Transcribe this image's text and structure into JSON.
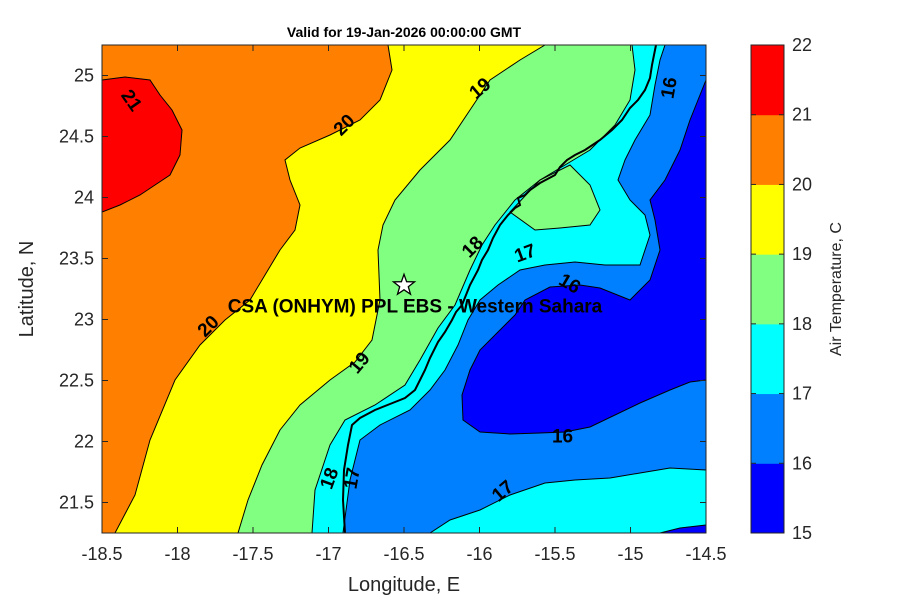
{
  "chart_data": {
    "type": "filled-contour",
    "title": "Valid for 19-Jan-2026 00:00:00 GMT",
    "xlabel": "Longitude, E",
    "ylabel": "Latitude, N",
    "xlim": [
      -18.5,
      -14.5
    ],
    "ylim": [
      21.25,
      25.25
    ],
    "xticks": [
      "-18.5",
      "-18",
      "-17.5",
      "-17",
      "-16.5",
      "-16",
      "-15.5",
      "-15",
      "-14.5"
    ],
    "yticks": [
      "21.5",
      "22",
      "22.5",
      "23",
      "23.5",
      "24",
      "24.5",
      "25"
    ],
    "colorbar": {
      "label": "Air Temperature, C",
      "levels": [
        15,
        16,
        17,
        18,
        19,
        20,
        21,
        22
      ],
      "tick_labels": [
        "15",
        "16",
        "17",
        "18",
        "19",
        "20",
        "21",
        "22"
      ],
      "colors": [
        "#0000ff",
        "#0080ff",
        "#00ffff",
        "#80ff80",
        "#ffff00",
        "#ff8000",
        "#ff0000",
        "#800000"
      ]
    },
    "contour_labels": [
      {
        "text": "21",
        "lon": -18.3,
        "lat": 24.8
      },
      {
        "text": "20",
        "lon": -16.9,
        "lat": 24.6
      },
      {
        "text": "19",
        "lon": -16.0,
        "lat": 24.9
      },
      {
        "text": "16",
        "lon": -14.75,
        "lat": 24.9
      },
      {
        "text": "18",
        "lon": -16.05,
        "lat": 23.6
      },
      {
        "text": "17",
        "lon": -15.7,
        "lat": 23.55
      },
      {
        "text": "16",
        "lon": -15.4,
        "lat": 23.3
      },
      {
        "text": "20",
        "lon": -17.8,
        "lat": 22.95
      },
      {
        "text": "19",
        "lon": -16.8,
        "lat": 22.65
      },
      {
        "text": "16",
        "lon": -15.45,
        "lat": 22.05
      },
      {
        "text": "18",
        "lon": -17.0,
        "lat": 21.7
      },
      {
        "text": "17",
        "lon": -16.85,
        "lat": 21.7
      },
      {
        "text": "17",
        "lon": -15.85,
        "lat": 21.6
      }
    ],
    "station": {
      "name": "CSA (ONHYM) PPL EBS - Western Sahara",
      "lon": -16.5,
      "lat": 23.28
    }
  }
}
